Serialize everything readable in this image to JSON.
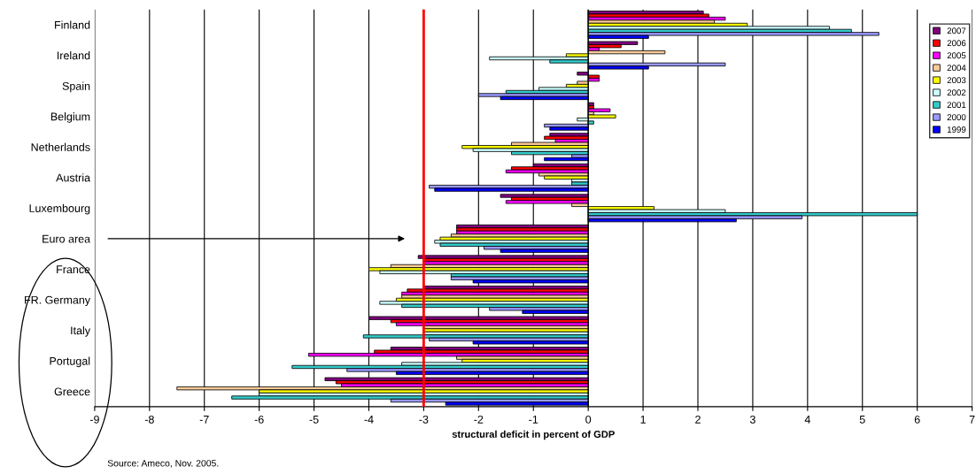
{
  "chart_data": {
    "type": "bar",
    "orientation": "horizontal",
    "xlabel": "structural deficit in percent of GDP",
    "categories": [
      "Finland",
      "Ireland",
      "Spain",
      "Belgium",
      "Netherlands",
      "Austria",
      "Luxembourg",
      "Euro area",
      "France",
      "FR. Germany",
      "Italy",
      "Portugal",
      "Greece"
    ],
    "series": [
      {
        "name": "2007",
        "color": "#800080",
        "values": [
          2.1,
          0.9,
          -0.2,
          0.1,
          -0.7,
          -1.0,
          -1.6,
          -2.4,
          -3.1,
          -3.0,
          -4.0,
          -3.6,
          -4.8
        ]
      },
      {
        "name": "2006",
        "color": "#ff0000",
        "values": [
          2.2,
          0.6,
          0.2,
          0.1,
          -0.8,
          -1.4,
          -1.4,
          -2.4,
          -3.0,
          -3.3,
          -3.6,
          -3.9,
          -4.6
        ]
      },
      {
        "name": "2005",
        "color": "#ff00ff",
        "values": [
          2.5,
          0.2,
          0.2,
          0.4,
          -0.6,
          -1.5,
          -1.5,
          -2.4,
          -3.0,
          -3.4,
          -3.5,
          -5.1,
          -4.5
        ]
      },
      {
        "name": "2004",
        "color": "#ffcc99",
        "values": [
          2.3,
          1.4,
          -0.2,
          0.1,
          -1.4,
          -0.9,
          -0.3,
          -2.5,
          -3.6,
          -3.4,
          -3.0,
          -2.4,
          -7.5
        ]
      },
      {
        "name": "2003",
        "color": "#ffff00",
        "values": [
          2.9,
          -0.4,
          -0.4,
          0.5,
          -2.3,
          -0.8,
          1.2,
          -2.7,
          -4.0,
          -3.5,
          -3.0,
          -2.3,
          -6.0
        ]
      },
      {
        "name": "2002",
        "color": "#ccffff",
        "values": [
          4.4,
          -1.8,
          -0.9,
          -0.2,
          -2.1,
          -0.3,
          2.5,
          -2.8,
          -3.8,
          -3.8,
          -3.0,
          -3.4,
          -6.0
        ]
      },
      {
        "name": "2001",
        "color": "#33cccc",
        "values": [
          4.8,
          -0.7,
          -1.5,
          0.1,
          -1.4,
          -0.3,
          6.0,
          -2.7,
          -2.5,
          -3.4,
          -4.1,
          -5.4,
          -6.5
        ]
      },
      {
        "name": "2000",
        "color": "#9999ff",
        "values": [
          5.3,
          2.5,
          -2.0,
          -0.8,
          -0.3,
          -2.9,
          3.9,
          -1.9,
          -2.5,
          -1.8,
          -2.9,
          -4.4,
          -3.6
        ]
      },
      {
        "name": "1999",
        "color": "#0000ff",
        "values": [
          1.1,
          1.1,
          -1.6,
          -0.7,
          -0.8,
          -2.8,
          2.7,
          -1.6,
          -2.1,
          -1.2,
          -2.1,
          -3.5,
          -2.6
        ]
      }
    ],
    "xlim": [
      -9,
      7
    ],
    "xticks": [
      -9,
      -8,
      -7,
      -6,
      -5,
      -4,
      -3,
      -2,
      -1,
      0,
      1,
      2,
      3,
      4,
      5,
      6,
      7
    ],
    "grid": "x",
    "legend": "top right",
    "ref_lines": [
      {
        "axis": "x",
        "value": -3,
        "color": "#ff0000"
      }
    ],
    "annotations": [
      "Source: Ameco, Nov. 2005."
    ]
  }
}
